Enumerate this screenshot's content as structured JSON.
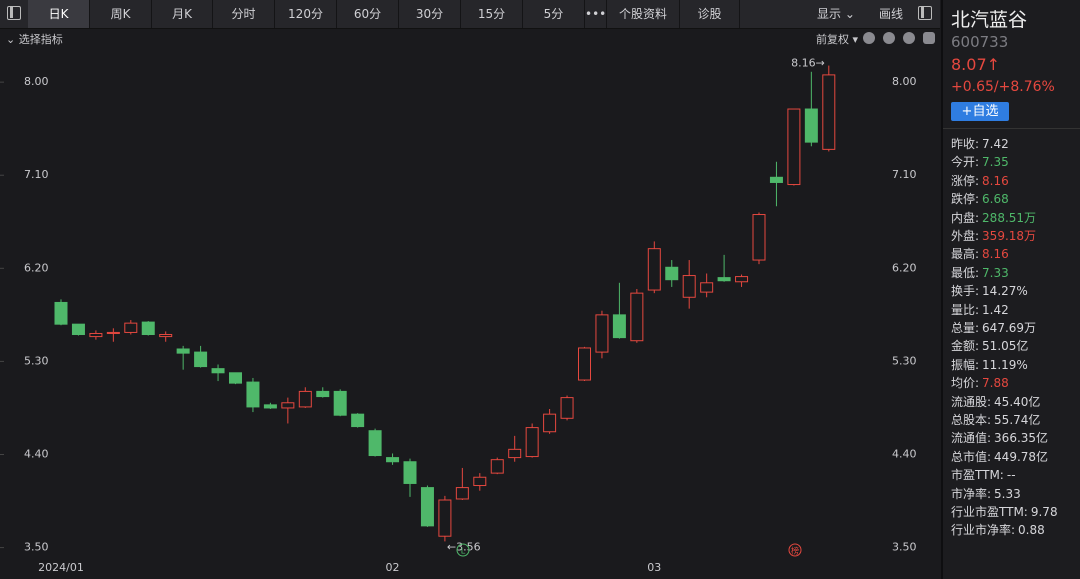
{
  "toolbar": {
    "tabs": [
      "日K",
      "周K",
      "月K",
      "分时",
      "120分",
      "60分",
      "30分",
      "15分",
      "5分",
      "•••",
      "个股资料",
      "诊股"
    ],
    "display": "显示",
    "draw": "画线"
  },
  "subbar": {
    "indicator": "选择指标",
    "adjust": "前复权"
  },
  "stock": {
    "name": "北汽蓝谷",
    "code": "600733",
    "price": "8.07↑",
    "change": "+0.65/+8.76%",
    "watch_button": "+自选",
    "stats": [
      {
        "label": "昨收:",
        "value": "7.42",
        "color": "#d6d6da"
      },
      {
        "label": "今开:",
        "value": "7.35",
        "color": "#4fb86a"
      },
      {
        "label": "涨停:",
        "value": "8.16",
        "color": "#e5483f"
      },
      {
        "label": "跌停:",
        "value": "6.68",
        "color": "#4fb86a"
      },
      {
        "label": "内盘:",
        "value": "288.51万",
        "color": "#4fb86a"
      },
      {
        "label": "外盘:",
        "value": "359.18万",
        "color": "#e5483f"
      },
      {
        "label": "最高:",
        "value": "8.16",
        "color": "#e5483f"
      },
      {
        "label": "最低:",
        "value": "7.33",
        "color": "#4fb86a"
      },
      {
        "label": "换手:",
        "value": "14.27%",
        "color": "#d6d6da"
      },
      {
        "label": "量比:",
        "value": "1.42",
        "color": "#d6d6da"
      },
      {
        "label": "总量:",
        "value": "647.69万",
        "color": "#d6d6da"
      },
      {
        "label": "金额:",
        "value": "51.05亿",
        "color": "#d6d6da"
      },
      {
        "label": "振幅:",
        "value": "11.19%",
        "color": "#d6d6da"
      },
      {
        "label": "均价:",
        "value": "7.88",
        "color": "#e5483f"
      },
      {
        "label": "流通股:",
        "value": "45.40亿",
        "color": "#d6d6da"
      },
      {
        "label": "总股本:",
        "value": "55.74亿",
        "color": "#d6d6da"
      },
      {
        "label": "流通值:",
        "value": "366.35亿",
        "color": "#d6d6da"
      },
      {
        "label": "总市值:",
        "value": "449.78亿",
        "color": "#d6d6da"
      },
      {
        "label": "市盈TTM:",
        "value": "--",
        "color": "#d6d6da"
      },
      {
        "label": "市净率:",
        "value": "5.33",
        "color": "#d6d6da"
      },
      {
        "label": "行业市盈TTM:",
        "value": "9.78",
        "color": "#d6d6da"
      },
      {
        "label": "行业市净率:",
        "value": "0.88",
        "color": "#d6d6da"
      }
    ]
  },
  "chart_data": {
    "type": "candlestick",
    "up_color": "#e5483f",
    "down_color": "#4fb86a",
    "categories": [
      "2024/01",
      null,
      null,
      null,
      null,
      null,
      null,
      null,
      null,
      null,
      null,
      null,
      null,
      null,
      null,
      null,
      null,
      null,
      null,
      "02",
      null,
      null,
      null,
      null,
      null,
      null,
      null,
      null,
      null,
      null,
      null,
      null,
      null,
      null,
      "03",
      null,
      null,
      null,
      null,
      null,
      null,
      null,
      null,
      null,
      null
    ],
    "open": [
      5.87,
      5.66,
      5.54,
      5.57,
      5.58,
      5.68,
      5.54,
      5.42,
      5.39,
      5.23,
      5.19,
      5.1,
      4.88,
      4.85,
      4.86,
      5.01,
      5.01,
      4.79,
      4.63,
      4.37,
      4.33,
      4.08,
      3.61,
      3.97,
      4.1,
      4.22,
      4.37,
      4.38,
      4.62,
      4.75,
      5.12,
      5.39,
      5.75,
      5.5,
      5.99,
      6.21,
      5.92,
      5.97,
      6.11,
      6.07,
      6.28,
      7.08,
      7.01,
      7.74,
      7.35
    ],
    "high": [
      5.9,
      5.66,
      5.6,
      5.62,
      5.7,
      5.69,
      5.59,
      5.45,
      5.45,
      5.27,
      5.19,
      5.14,
      4.9,
      4.95,
      5.05,
      5.05,
      5.03,
      4.8,
      4.65,
      4.41,
      4.36,
      4.1,
      4.0,
      4.27,
      4.22,
      4.37,
      4.58,
      4.7,
      4.84,
      4.97,
      5.44,
      5.79,
      6.06,
      6.0,
      6.46,
      6.28,
      6.28,
      6.15,
      6.33,
      6.14,
      6.74,
      7.23,
      7.74,
      8.1,
      8.16
    ],
    "low": [
      5.65,
      5.55,
      5.51,
      5.49,
      5.56,
      5.55,
      5.49,
      5.22,
      5.24,
      5.11,
      5.08,
      4.81,
      4.84,
      4.7,
      4.85,
      4.95,
      4.77,
      4.66,
      4.38,
      4.3,
      3.99,
      3.7,
      3.56,
      3.96,
      4.05,
      4.21,
      4.33,
      4.37,
      4.6,
      4.73,
      5.11,
      5.33,
      5.52,
      5.48,
      5.96,
      6.02,
      5.81,
      5.92,
      6.07,
      6.02,
      6.24,
      6.8,
      7.0,
      7.38,
      7.33
    ],
    "close": [
      5.66,
      5.56,
      5.57,
      5.58,
      5.67,
      5.56,
      5.56,
      5.38,
      5.25,
      5.19,
      5.09,
      4.86,
      4.85,
      4.9,
      5.01,
      4.96,
      4.78,
      4.67,
      4.39,
      4.33,
      4.12,
      3.71,
      3.96,
      4.08,
      4.18,
      4.35,
      4.45,
      4.66,
      4.79,
      4.95,
      5.43,
      5.75,
      5.53,
      5.96,
      6.39,
      6.09,
      6.13,
      6.06,
      6.08,
      6.12,
      6.72,
      7.03,
      7.74,
      7.42,
      8.07
    ],
    "ylim": [
      3.38,
      8.33
    ],
    "yticks": [
      {
        "value": 3.5,
        "label": "3.50"
      },
      {
        "value": 4.4,
        "label": "4.40"
      },
      {
        "value": 5.3,
        "label": "5.30"
      },
      {
        "value": 6.2,
        "label": "6.20"
      },
      {
        "value": 7.1,
        "label": "7.10"
      },
      {
        "value": 8.0,
        "label": "8.00"
      }
    ],
    "annotations": {
      "high": "8.16→",
      "low": "←3.56",
      "marker_l": "L",
      "marker_rank": "榜"
    }
  }
}
